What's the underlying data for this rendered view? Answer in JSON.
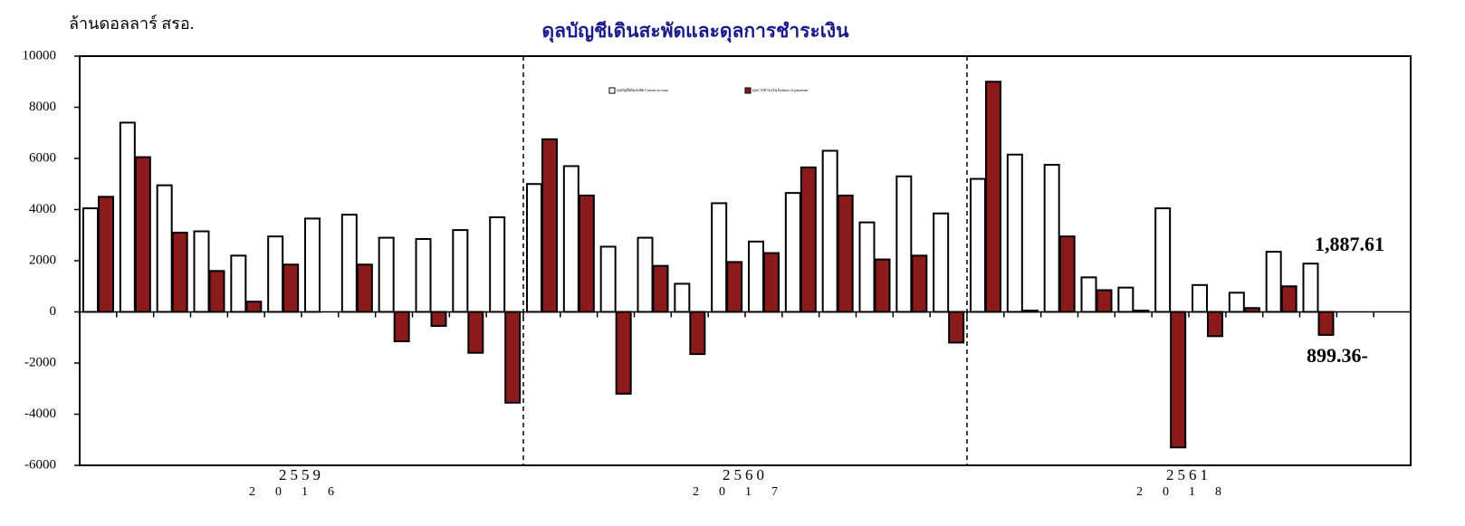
{
  "chart_data": {
    "type": "bar",
    "title": "ดุลบัญชีเดินสะพัดและดุลการชำระเงิน",
    "y_unit": "ล้านดอลลาร์ สรอ.",
    "categories": [
      null,
      null,
      null,
      null,
      null,
      null,
      null,
      null,
      null,
      null,
      null,
      null,
      null,
      null,
      null,
      null,
      null,
      null,
      null,
      null,
      null,
      null,
      null,
      null,
      null,
      null,
      null,
      null,
      null,
      null,
      null,
      null,
      null,
      null
    ],
    "groups": [
      {
        "label": "2559",
        "sublabel": "2016"
      },
      {
        "label": "2560",
        "sublabel": "2017"
      },
      {
        "label": "2561",
        "sublabel": "2018"
      }
    ],
    "series": [
      {
        "name": "ดุลบัญชีเดินสะพัด Current account",
        "color": "#ffffff",
        "values": [
          4050,
          7400,
          4950,
          3150,
          2200,
          2950,
          3650,
          3800,
          2900,
          2850,
          3200,
          3700,
          5000,
          5700,
          2550,
          2900,
          1100,
          4250,
          2750,
          4650,
          6300,
          3500,
          5300,
          3850,
          5200,
          6150,
          5750,
          1350,
          950,
          4050,
          1050,
          750,
          2350,
          1887.61
        ]
      },
      {
        "name": "ดุลการชำระเงิน Balance of payments",
        "color": "#8b1a1a",
        "values": [
          4500,
          6050,
          3100,
          1600,
          400,
          1850,
          0,
          1850,
          -1150,
          -550,
          -1600,
          -3550,
          6750,
          4550,
          -3200,
          1800,
          -1650,
          1950,
          2300,
          5650,
          4550,
          2050,
          2200,
          -1200,
          9000,
          50,
          2950,
          850,
          50,
          -5300,
          -950,
          150,
          1000,
          -899.36
        ]
      }
    ],
    "annotations": [
      {
        "text": "1,887.61"
      },
      {
        "text": "899.36-"
      }
    ],
    "ylim": [
      -6000,
      10000
    ],
    "yticks": [
      -6000,
      -4000,
      -2000,
      0,
      2000,
      4000,
      6000,
      8000,
      10000
    ],
    "grid": false
  }
}
